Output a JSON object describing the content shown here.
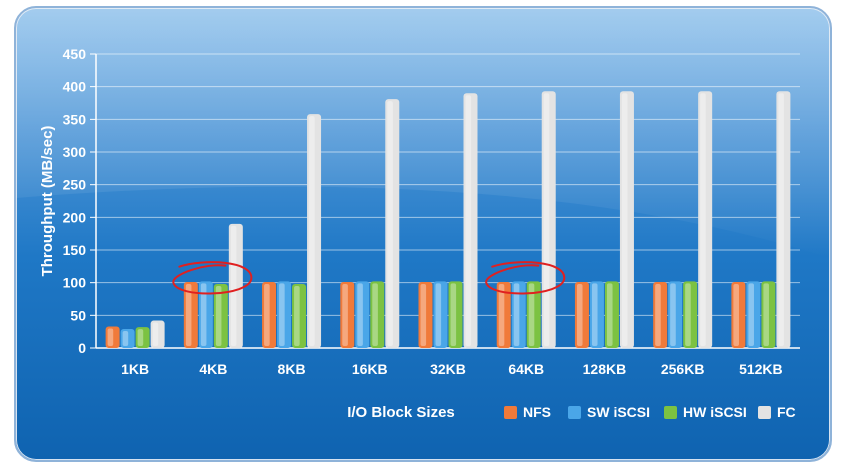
{
  "chart_data": {
    "type": "bar",
    "title": "",
    "xlabel": "I/O Block Sizes",
    "ylabel": "Throughput (MB/sec)",
    "ylim": [
      0,
      450
    ],
    "yticks": [
      0,
      50,
      100,
      150,
      200,
      250,
      300,
      350,
      400,
      450
    ],
    "categories": [
      "1KB",
      "4KB",
      "8KB",
      "16KB",
      "32KB",
      "64KB",
      "128KB",
      "256KB",
      "512KB"
    ],
    "series": [
      {
        "name": "NFS",
        "color": "#f07a3a",
        "values": [
          33,
          101,
          101,
          101,
          101,
          101,
          101,
          101,
          101
        ]
      },
      {
        "name": "SW iSCSI",
        "color": "#4aa6e8",
        "values": [
          29,
          102,
          102,
          102,
          102,
          102,
          102,
          102,
          102
        ]
      },
      {
        "name": "HW iSCSI",
        "color": "#7cc242",
        "values": [
          32,
          98,
          98,
          102,
          102,
          102,
          102,
          102,
          102
        ]
      },
      {
        "name": "FC",
        "color": "#e3e3e3",
        "values": [
          42,
          190,
          358,
          381,
          390,
          393,
          393,
          393,
          393
        ]
      }
    ],
    "grid": true,
    "legend_position": "bottom-right",
    "annotations": [
      {
        "type": "hand-drawn-circle",
        "color": "#e02020",
        "category": "4KB"
      },
      {
        "type": "hand-drawn-circle",
        "color": "#e02020",
        "category": "64KB"
      }
    ]
  }
}
